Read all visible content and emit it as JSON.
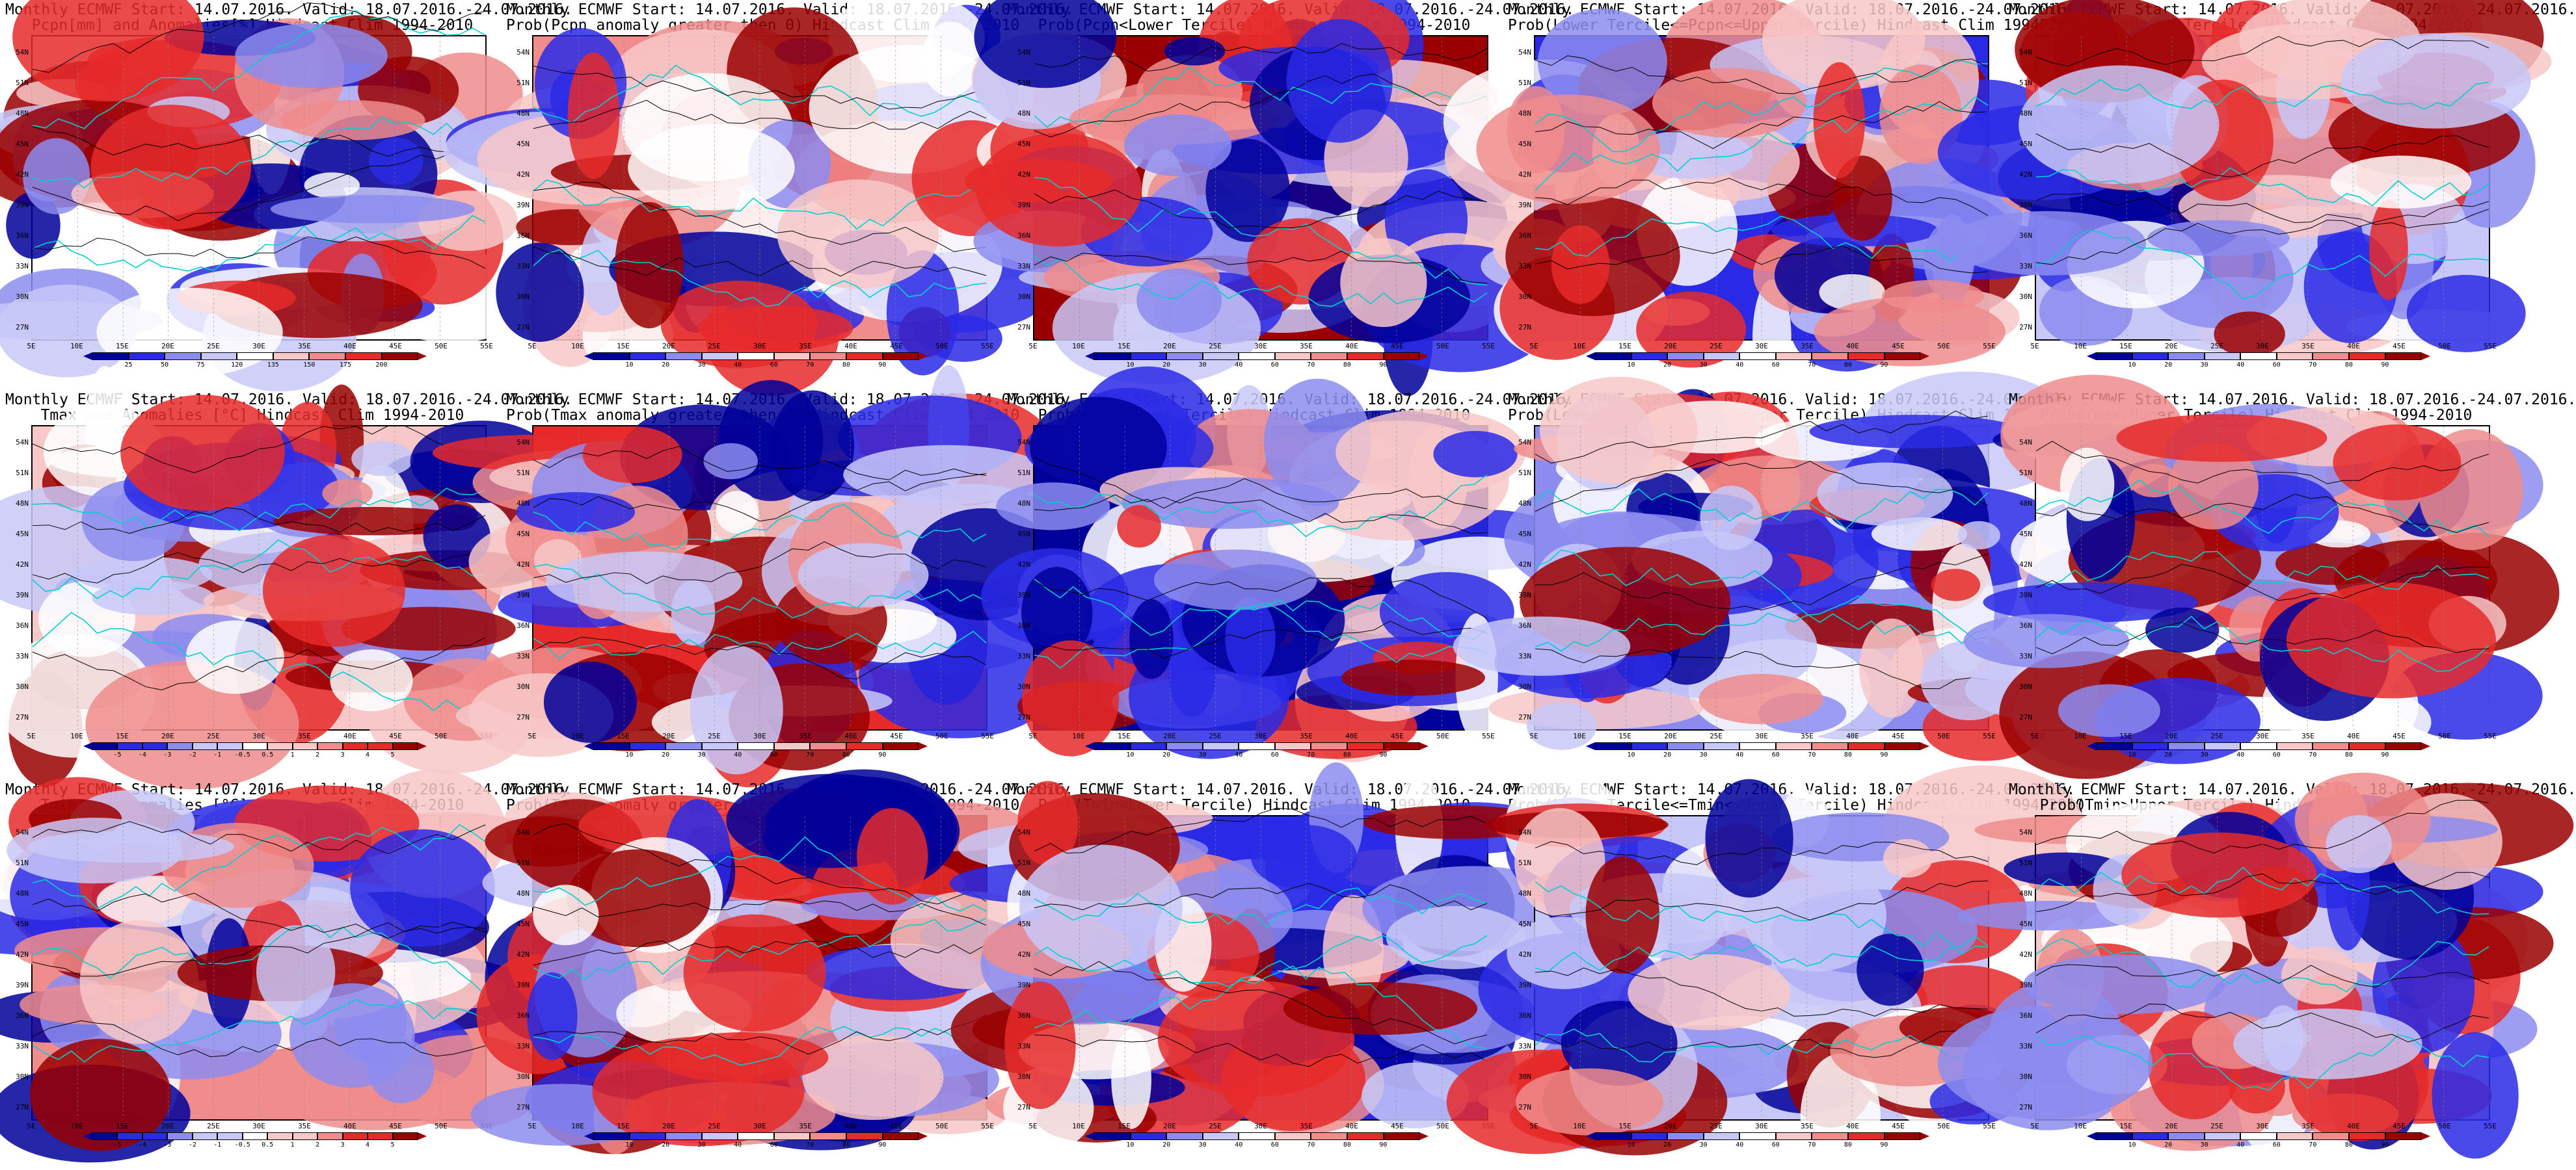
{
  "lat_labels": [
    "54N",
    "51N",
    "48N",
    "45N",
    "42N",
    "39N",
    "36N",
    "33N",
    "30N",
    "27N"
  ],
  "lon_labels": [
    "5E",
    "10E",
    "15E",
    "20E",
    "25E",
    "30E",
    "35E",
    "40E",
    "45E",
    "50E",
    "55E"
  ],
  "colorbars": {
    "pcpn_anom": [
      "25",
      "50",
      "75",
      "120",
      "135",
      "150",
      "175",
      "200"
    ],
    "prob": [
      "10",
      "20",
      "30",
      "40",
      "60",
      "70",
      "80",
      "90"
    ],
    "temp_anom": [
      "-5",
      "-4",
      "-3",
      "-2",
      "-1",
      "-0.5",
      "0.5",
      "1",
      "2",
      "3",
      "4",
      "5"
    ]
  },
  "colors": {
    "dark_blue": "#00009a",
    "blue": "#2a2ae6",
    "light_blue": "#8c8cf0",
    "pale_blue": "#c8c8f8",
    "white": "#ffffff",
    "pale_red": "#f8c8c8",
    "light_red": "#f08c8c",
    "red": "#e62a2a",
    "dark_red": "#9a0000",
    "coast": "#00d0d0",
    "contour": "#000000"
  },
  "panels": [
    {
      "line1": "Monthly ECMWF Start: 14.07.2016. Valid: 18.07.2016.-24.07.2016.",
      "line2": "Pcpn[mm] and Anomalies[%] Hindcast Clim 1994-2010",
      "cbar": "pcpn_anom"
    },
    {
      "line1": "Monthly ECMWF Start: 14.07.2016. Valid: 18.07.2016.-24.07.2016.",
      "line2": "Prob(Pcpn anomaly greater then 0) Hindcast Clim 1994-2010",
      "cbar": "prob"
    },
    {
      "line1": "Monthly ECMWF Start: 14.07.2016. Valid: 18.07.2016.-24.07.2016.",
      "line2": "Prob(Pcpn<Lower Tercile) Hindcast Clim 1994-2010",
      "cbar": "prob"
    },
    {
      "line1": "Monthly ECMWF Start: 14.07.2016. Valid: 18.07.2016.-24.07.2016.",
      "line2": "Prob(Lower Tercile<=Pcpn<=Upper Tercile) Hindcast Clim 1994-2010",
      "cbar": "prob"
    },
    {
      "line1": "Monthly ECMWF Start: 14.07.2016. Valid: 18.07.2016.-24.07.2016.",
      "line2": "Prob(Pcpn>Upper Tercile) Hindcast Clim 1994-2010",
      "cbar": "prob"
    },
    {
      "line1": "Monthly ECMWF Start: 14.07.2016. Valid: 18.07.2016.-24.07.2016.",
      "line2": "Tmax and Anomalies [°C] Hindcast Clim 1994-2010",
      "cbar": "temp_anom"
    },
    {
      "line1": "Monthly ECMWF Start: 14.07.2016. Valid: 18.07.2016.-24.07.2016.",
      "line2": "Prob(Tmax anomaly greater then 0) Hindcast Clim 1994-2010",
      "cbar": "prob"
    },
    {
      "line1": "Monthly ECMWF Start: 14.07.2016. Valid: 18.07.2016.-24.07.2016.",
      "line2": "Prob(Tmax<Lower Tercile) Hindcast Clim 1994-2010",
      "cbar": "prob"
    },
    {
      "line1": "Monthly ECMWF Start: 14.07.2016. Valid: 18.07.2016.-24.07.2016.",
      "line2": "Prob(Lower Tercile<=Tmax<=Upper Tercile) Hindcast Clim 1994-2010",
      "cbar": "prob"
    },
    {
      "line1": "Monthly ECMWF Start: 14.07.2016. Valid: 18.07.2016.-24.07.2016.",
      "line2": "Prob(Tmax>Upper Tercile) Hindcast Clim 1994-2010",
      "cbar": "prob"
    },
    {
      "line1": "Monthly ECMWF Start: 14.07.2016. Valid: 18.07.2016.-24.07.2016.",
      "line2": "Tmin and Anomalies [°C] Hindcast Clim 1994-2010",
      "cbar": "temp_anom"
    },
    {
      "line1": "Monthly ECMWF Start: 14.07.2016. Valid: 18.07.2016.-24.07.2016.",
      "line2": "Prob(Tmin anomaly greater then 0) Hindcast Clim 1994-2010",
      "cbar": "prob"
    },
    {
      "line1": "Monthly ECMWF Start: 14.07.2016. Valid: 18.07.2016.-24.07.2016.",
      "line2": "Prob(Tmin<Lower Tercile) Hindcast Clim 1994-2010",
      "cbar": "prob"
    },
    {
      "line1": "Monthly ECMWF Start: 14.07.2016. Valid: 18.07.2016.-24.07.2016.",
      "line2": "Prob(Lower Tercile<=Tmin<=Upper Tercile) Hindcast Clim 1994-2010",
      "cbar": "prob"
    },
    {
      "line1": "Monthly ECMWF Start: 14.07.2016. Valid: 18.07.2016.-24.07.2016.",
      "line2": "Prob(Tmin>Upper Tercile) Hindcast Clim 1994-2010",
      "cbar": "prob"
    }
  ]
}
